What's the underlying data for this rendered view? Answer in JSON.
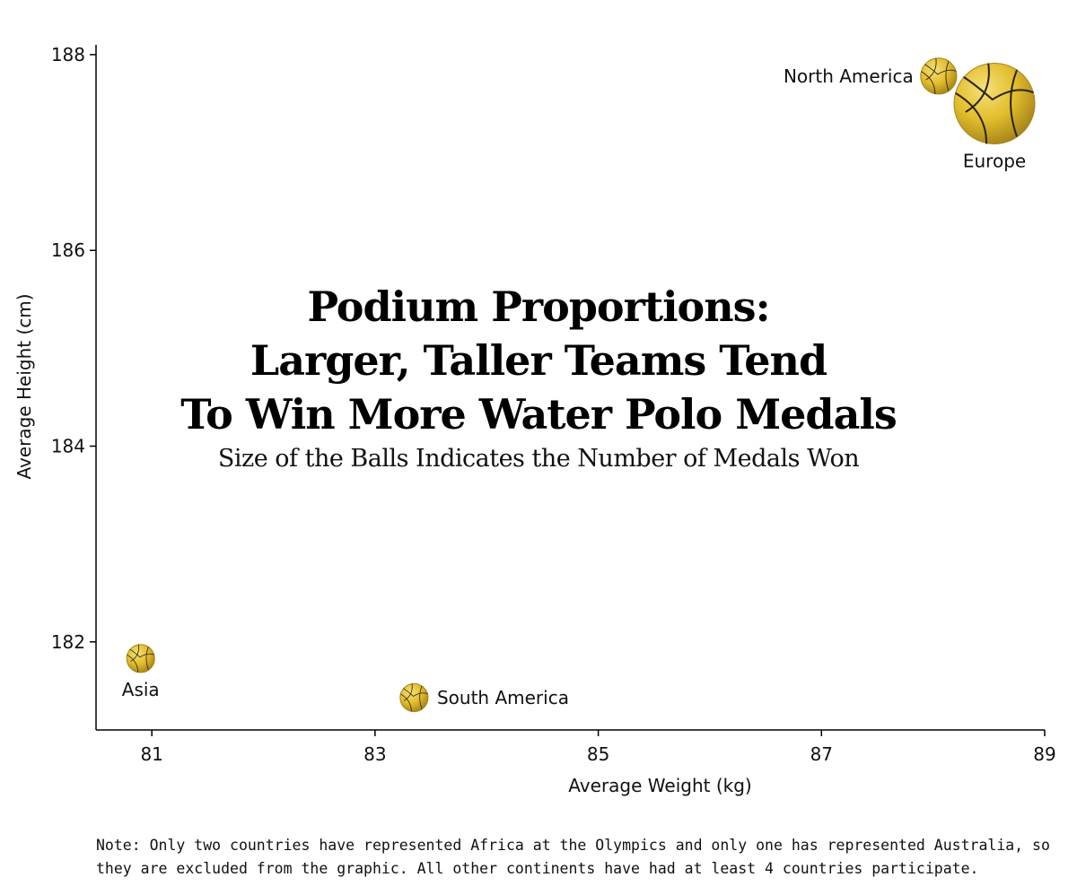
{
  "chart_data": {
    "type": "scatter",
    "title_lines": [
      "Podium Proportions:",
      "Larger, Taller Teams Tend",
      "To Win More Water Polo Medals"
    ],
    "subtitle": "Size of the Balls Indicates the Number of Medals Won",
    "xlabel": "Average Weight (kg)",
    "ylabel": "Average Height (cm)",
    "xlim": [
      80.5,
      89
    ],
    "ylim": [
      181.1,
      188.1
    ],
    "xticks": [
      81,
      83,
      85,
      87,
      89
    ],
    "yticks": [
      182,
      184,
      186,
      188
    ],
    "grid": false,
    "points": [
      {
        "label": "Europe",
        "x": 88.55,
        "y": 187.5,
        "size": 100,
        "label_position": "below"
      },
      {
        "label": "North America",
        "x": 88.05,
        "y": 187.78,
        "size": 20,
        "label_position": "left"
      },
      {
        "label": "Asia",
        "x": 80.9,
        "y": 181.83,
        "size": 12,
        "label_position": "below"
      },
      {
        "label": "South America",
        "x": 83.35,
        "y": 181.43,
        "size": 12,
        "label_position": "right"
      }
    ],
    "marker": "water-polo-ball-icon",
    "colors": {
      "ball_fill": "#e2bd2c",
      "ball_highlight": "#f6e07a",
      "ball_shadow": "#a8861a",
      "seam": "#2b2417",
      "axis": "#000000"
    }
  },
  "note": "Note: Only two countries have represented Africa at the Olympics and only one has represented Australia, so they are excluded from the graphic. All other continents have had at least 4 countries participate."
}
